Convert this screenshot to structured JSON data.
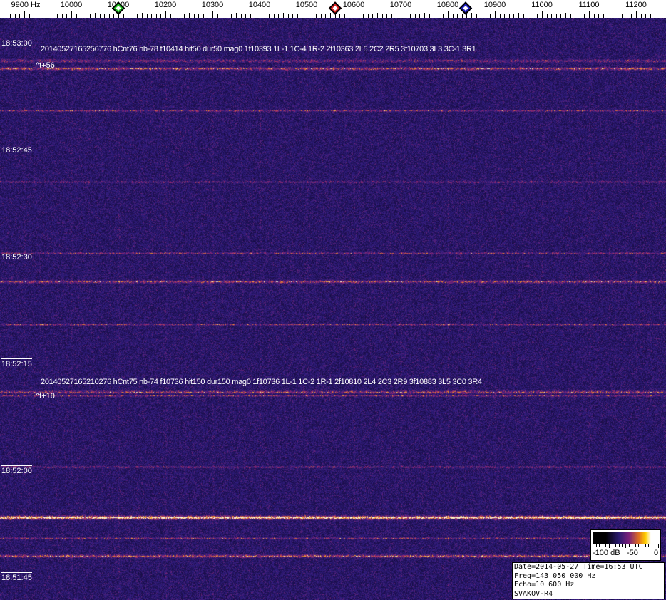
{
  "frequency_axis": {
    "labels": [
      "9900 Hz",
      "10000",
      "10100",
      "10200",
      "10300",
      "10400",
      "10500",
      "10600",
      "10700",
      "10800",
      "10900",
      "11000",
      "11100",
      "11200"
    ],
    "markers": [
      {
        "name": "green-marker",
        "freq_hz": 10100,
        "color": "#22cc22"
      },
      {
        "name": "red-marker",
        "freq_hz": 10560,
        "color": "#dd2222"
      },
      {
        "name": "blue-marker",
        "freq_hz": 10838,
        "color": "#2222cc"
      }
    ]
  },
  "time_labels": [
    "18:53:00",
    "18:52:45",
    "18:52:30",
    "18:52:15",
    "18:52:00",
    "18:51:45"
  ],
  "detections": [
    {
      "text": "20140527165256776 hCnt76 nb-78 f10414 hit50 dur50 mag0 1f10393 1L-1 1C-4 1R-2 2f10363 2L5 2C2 2R5 3f10703 3L3 3C-1 3R1",
      "offset": "^t+56"
    },
    {
      "text": "20140527165210276 hCnt75 nb-74 f10736 hit150 dur150 mag0 1f10736 1L-1 1C-2 1R-1 2f10810 2L4 2C3 2R9 3f10883 3L5 3C0 3R4",
      "offset": "^t+10"
    }
  ],
  "legend": {
    "labels": [
      "-100 dB",
      "-50",
      "0"
    ]
  },
  "info": {
    "line1": "Date=2014-05-27 Time=16:53 UTC",
    "line2": "Freq=143 050 000 Hz",
    "line3": "Echo=10 600 Hz",
    "line4": "SVAKOV-R4"
  }
}
